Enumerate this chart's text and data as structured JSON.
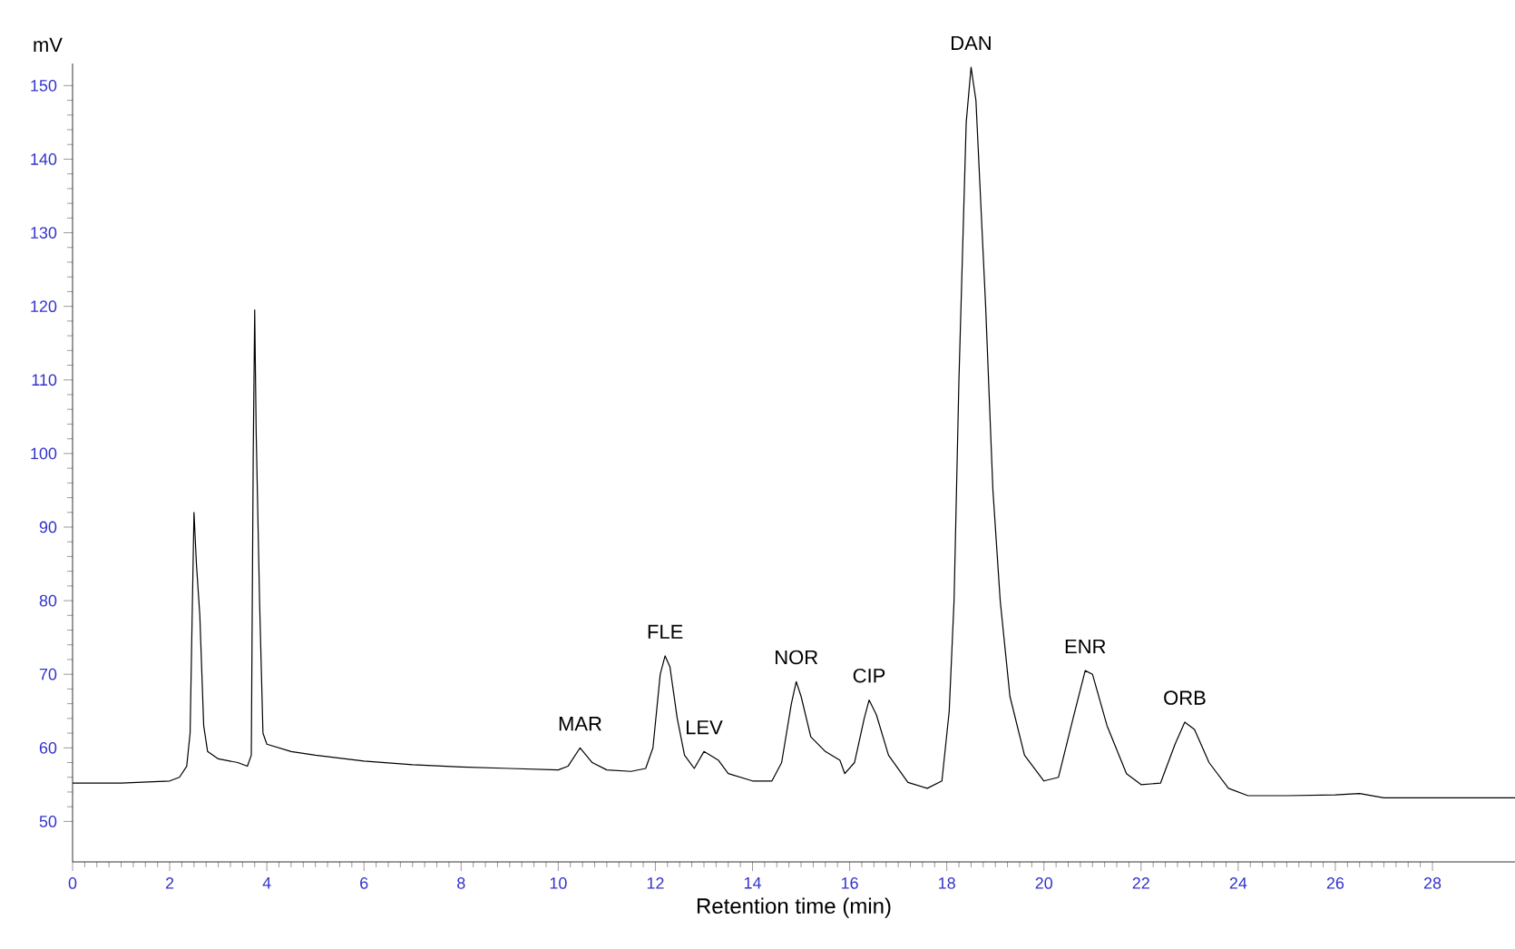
{
  "chart_data": {
    "type": "line",
    "xlabel": "Retention time (min)",
    "ylabel": "mV",
    "xlim": [
      0,
      29.7
    ],
    "ylim": [
      44.5,
      153
    ],
    "xticks": [
      0,
      2,
      4,
      6,
      8,
      10,
      12,
      14,
      16,
      18,
      20,
      22,
      24,
      26,
      28
    ],
    "yticks": [
      50,
      60,
      70,
      80,
      90,
      100,
      110,
      120,
      130,
      140,
      150
    ],
    "grid": false,
    "marker": "none",
    "line_style": "solid",
    "series": [
      {
        "color": "#000000",
        "x": [
          0,
          1,
          2,
          2.2,
          2.35,
          2.42,
          2.5,
          2.55,
          2.62,
          2.7,
          2.78,
          3.0,
          3.4,
          3.6,
          3.68,
          3.72,
          3.75,
          3.78,
          3.85,
          3.92,
          4.0,
          4.5,
          5,
          6,
          7,
          8,
          9,
          10,
          10.2,
          10.45,
          10.7,
          11,
          11.5,
          11.8,
          11.95,
          12.1,
          12.2,
          12.3,
          12.45,
          12.6,
          12.8,
          13.0,
          13.3,
          13.5,
          14.0,
          14.4,
          14.6,
          14.8,
          14.9,
          15.0,
          15.2,
          15.5,
          15.8,
          15.9,
          16.1,
          16.3,
          16.4,
          16.55,
          16.8,
          17.2,
          17.6,
          17.9,
          18.05,
          18.15,
          18.25,
          18.4,
          18.5,
          18.6,
          18.8,
          18.95,
          19.1,
          19.3,
          19.6,
          20.0,
          20.3,
          20.6,
          20.85,
          21.0,
          21.3,
          21.7,
          22.0,
          22.4,
          22.7,
          22.9,
          23.1,
          23.4,
          23.8,
          24.2,
          25,
          26,
          26.5,
          27,
          28,
          29.7
        ],
        "values": [
          55.2,
          55.2,
          55.5,
          56,
          57.5,
          62,
          92,
          85,
          78,
          63,
          59.5,
          58.5,
          58,
          57.5,
          59,
          100,
          119.5,
          103,
          80,
          62,
          60.5,
          59.5,
          59,
          58.2,
          57.7,
          57.4,
          57.2,
          57,
          57.5,
          60,
          58,
          57,
          56.8,
          57.2,
          60,
          70,
          72.5,
          71,
          64,
          59,
          57.2,
          59.5,
          58.3,
          56.5,
          55.5,
          55.5,
          58,
          66,
          69,
          67,
          61.5,
          59.5,
          58.3,
          56.5,
          58,
          64,
          66.5,
          64.5,
          59,
          55.3,
          54.5,
          55.5,
          65,
          80,
          110,
          145,
          152.5,
          148,
          120,
          95,
          80,
          67,
          59,
          55.5,
          56,
          64,
          70.5,
          70,
          63,
          56.5,
          55,
          55.2,
          60.5,
          63.5,
          62.5,
          58,
          54.5,
          53.5,
          53.5,
          53.6,
          53.8,
          53.2,
          53.2,
          53.2
        ]
      }
    ],
    "annotations": [
      {
        "text": "MAR",
        "x": 10.45,
        "y": 60
      },
      {
        "text": "FLE",
        "x": 12.2,
        "y": 72.5
      },
      {
        "text": "LEV",
        "x": 13.0,
        "y": 59.5
      },
      {
        "text": "NOR",
        "x": 14.9,
        "y": 69
      },
      {
        "text": "CIP",
        "x": 16.4,
        "y": 66.5
      },
      {
        "text": "DAN",
        "x": 18.5,
        "y": 152.5
      },
      {
        "text": "ENR",
        "x": 20.85,
        "y": 70.5
      },
      {
        "text": "ORB",
        "x": 22.9,
        "y": 63.5
      }
    ]
  }
}
